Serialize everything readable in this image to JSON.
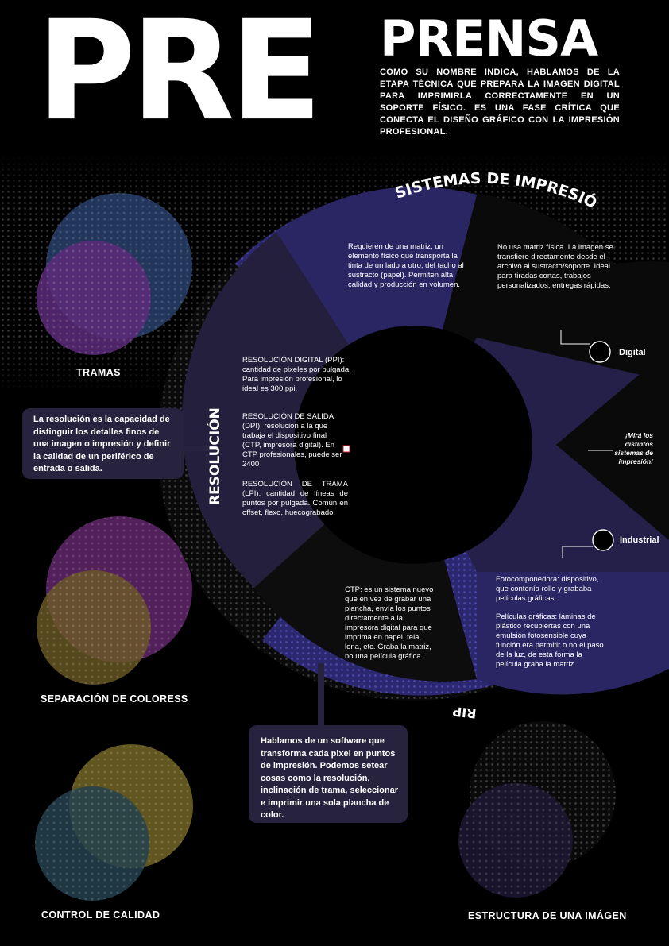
{
  "header": {
    "title_big": "PRE",
    "title_small": "PRENSA",
    "intro": "COMO SU NOMBRE INDICA, HABLAMOS DE LA ETAPA TÉCNICA QUE PREPARA LA IMAGEN DIGITAL PARA IMPRIMIRLA CORRECTAMENTE EN UN SOPORTE FÍSICO. ES UNA FASE CRÍTICA QUE CONECTA EL DISEÑO GRÁFICO CON LA IMPRESIÓN PROFESIONAL."
  },
  "wheel": {
    "ring_sistemas": "SISTEMAS DE IMPRESIÓN",
    "ring_resolucion": "RESOLUCIÓN",
    "ring_rip": "RIP",
    "seg_analog": "Requieren de una matriz, un elemento físico que transporta la tinta de un lado a otro, del tacho al sustracto (papel). Permiten alta calidad y producción en volumen.",
    "seg_digital": "No usa matriz física. La imagen se transfiere directamente desde el archivo al sustracto/soporte. Ideal para tiradas cortas, trabajos personalizados, entregas rápidas.",
    "res_ppi": "RESOLUCIÓN DIGITAL (PPI): cantidad de pixeles por pulgada. Para impresión profesional, lo ideal es 300 ppi.",
    "res_dpi": "RESOLUCIÓN DE SALIDA (DPI): resolución a la que trabaja el dispositivo final (CTP, impresora digital). En CTP profesionales, puede ser 2400",
    "res_lpi": "RESOLUCIÓN DE TRAMA (LPI): cantidad de líneas de puntos por pulgada. Común en offset, flexo, huecograbado.",
    "ctp": "CTP: es un sistema nuevo que en vez de grabar una plancha, envía los puntos directamente a la impresora digital para que imprima en papel, tela, lona, etc. Graba la matriz, no una película gráfica.",
    "fotocomp": "Fotocomponedora: dispositivo, que contenía rollo y grababa películas gráficas.",
    "peliculas": "Películas gráficas: láminas de plástico recubiertas con una emulsión fotosensible cuya función era permitir o no el paso de la luz, de esta forma la película graba la matriz."
  },
  "side": {
    "digital": "Digital",
    "industrial": "Industrial",
    "note": "¡Mirá los distintos sistemas de impresión!"
  },
  "callouts": {
    "resolucion": "La resolución es la capacidad de distinguir los detalles finos de una imagen o impresión y definir la calidad de un periférico de entrada o salida.",
    "rip": "Hablamos de un software que transforma cada pixel en puntos de impresión. Podemos setear cosas como la resolución, inclinación de trama, seleccionar e imprimir una sola plancha de color."
  },
  "labels": {
    "tramas": "TRAMAS",
    "separacion": "SEPARACIÓN DE COLORESS",
    "control": "CONTROL DE CALIDAD",
    "estructura": "ESTRUCTURA DE UNA IMÁGEN"
  },
  "colors": {
    "ring": "#2c2870",
    "segment_dark": "#231f3d",
    "segment_darker": "#18142a",
    "panel": "#27233f",
    "blue_circle": "#2b4a7a",
    "purple_circle": "#6a2f86",
    "olive_circle": "#7c6d25",
    "teal_circle": "#2c4b5a"
  }
}
